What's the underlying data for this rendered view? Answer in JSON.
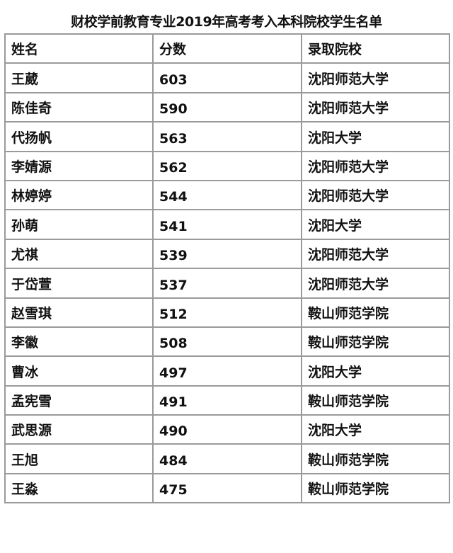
{
  "title": "财校学前教育专业2019年高考考入本科院校学生名单",
  "headers": [
    "姓名",
    "分数",
    "录取院校"
  ],
  "rows": [
    [
      "王葳",
      "603",
      "沈阳师范大学"
    ],
    [
      "陈佳奇",
      "590",
      "沈阳师范大学"
    ],
    [
      "代扬帆",
      "563",
      "沈阳大学"
    ],
    [
      "李婧源",
      "562",
      "沈阳师范大学"
    ],
    [
      "林婷婷",
      "544",
      "沈阳师范大学"
    ],
    [
      "孙萌",
      "541",
      "沈阳大学"
    ],
    [
      "尤祺",
      "539",
      "沈阳师范大学"
    ],
    [
      "于岱萱",
      "537",
      "沈阳师范大学"
    ],
    [
      "赵雪琪",
      "512",
      "鞍山师范学院"
    ],
    [
      "李徽",
      "508",
      "鞍山师范学院"
    ],
    [
      "曹冰",
      "497",
      "沈阳大学"
    ],
    [
      "孟宪雪",
      "491",
      "鞍山师范学院"
    ],
    [
      "武思源",
      "490",
      "沈阳大学"
    ],
    [
      "王旭",
      "484",
      "鞍山师范学院"
    ],
    [
      "王淼",
      "475",
      "鞍山师范学院"
    ]
  ]
}
